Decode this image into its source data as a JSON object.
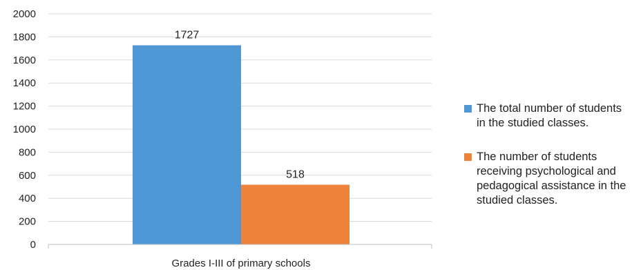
{
  "chart_data": {
    "type": "bar",
    "categories": [
      "Grades I-III  of primary schools"
    ],
    "series": [
      {
        "name": "The total number of students in the studied classes.",
        "values": [
          1727
        ],
        "color": "#4F97D5"
      },
      {
        "name": "The number of students receiving psychological and pedagogical assistance in the studied classes.",
        "values": [
          518
        ],
        "color": "#EE843C"
      }
    ],
    "data_labels": [
      "1727",
      "518"
    ],
    "y_ticks": [
      "0",
      "200",
      "400",
      "600",
      "800",
      "1000",
      "1200",
      "1400",
      "1600",
      "1800",
      "2000"
    ],
    "ylim": [
      0,
      2000
    ],
    "grid": true,
    "legend_position": "right"
  }
}
